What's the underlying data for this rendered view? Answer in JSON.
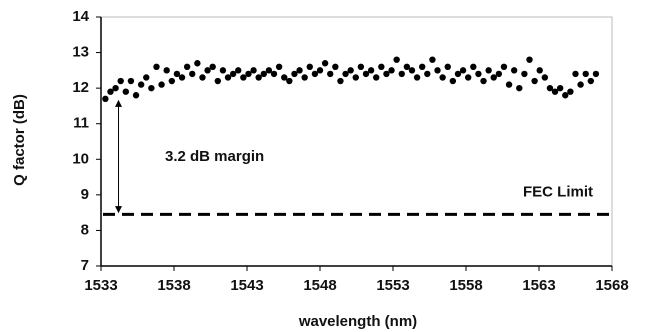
{
  "chart_data": {
    "type": "scatter",
    "x_label": "wavelength  (nm)",
    "y_label": "Q factor (dB)",
    "xlim": [
      1533,
      1568
    ],
    "xticks": [
      1533,
      1538,
      1543,
      1548,
      1553,
      1558,
      1563,
      1568
    ],
    "ylim": [
      7,
      14
    ],
    "yticks": [
      7,
      8,
      9,
      10,
      11,
      12,
      13,
      14
    ],
    "grid": false,
    "series": [
      {
        "color": "#000000",
        "x": [
          1533.3,
          1533.65,
          1534.0,
          1534.35,
          1534.7,
          1535.05,
          1535.4,
          1535.75,
          1536.1,
          1536.45,
          1536.8,
          1537.15,
          1537.5,
          1537.85,
          1538.2,
          1538.55,
          1538.9,
          1539.25,
          1539.6,
          1539.95,
          1540.3,
          1540.65,
          1541.0,
          1541.35,
          1541.7,
          1542.05,
          1542.4,
          1542.75,
          1543.1,
          1543.45,
          1543.8,
          1544.15,
          1544.5,
          1544.85,
          1545.2,
          1545.55,
          1545.9,
          1546.25,
          1546.6,
          1546.95,
          1547.3,
          1547.65,
          1548.0,
          1548.35,
          1548.7,
          1549.05,
          1549.4,
          1549.75,
          1550.1,
          1550.45,
          1550.8,
          1551.15,
          1551.5,
          1551.85,
          1552.2,
          1552.55,
          1552.9,
          1553.25,
          1553.6,
          1553.95,
          1554.3,
          1554.65,
          1555.0,
          1555.35,
          1555.7,
          1556.05,
          1556.4,
          1556.75,
          1557.1,
          1557.45,
          1557.8,
          1558.15,
          1558.5,
          1558.85,
          1559.2,
          1559.55,
          1559.9,
          1560.25,
          1560.6,
          1560.95,
          1561.3,
          1561.65,
          1562.0,
          1562.35,
          1562.7,
          1563.05,
          1563.4,
          1563.75,
          1564.1,
          1564.45,
          1564.8,
          1565.15,
          1565.5,
          1565.85,
          1566.2,
          1566.55,
          1566.9
        ],
        "values": [
          11.7,
          11.9,
          12.0,
          12.2,
          11.9,
          12.2,
          11.8,
          12.1,
          12.3,
          12.0,
          12.6,
          12.1,
          12.5,
          12.2,
          12.4,
          12.3,
          12.6,
          12.4,
          12.7,
          12.3,
          12.5,
          12.6,
          12.2,
          12.5,
          12.3,
          12.4,
          12.5,
          12.3,
          12.4,
          12.5,
          12.3,
          12.4,
          12.5,
          12.4,
          12.6,
          12.3,
          12.2,
          12.4,
          12.5,
          12.3,
          12.6,
          12.4,
          12.5,
          12.7,
          12.4,
          12.6,
          12.2,
          12.4,
          12.5,
          12.3,
          12.6,
          12.4,
          12.5,
          12.3,
          12.6,
          12.4,
          12.5,
          12.8,
          12.4,
          12.6,
          12.5,
          12.3,
          12.6,
          12.4,
          12.8,
          12.5,
          12.3,
          12.6,
          12.2,
          12.4,
          12.5,
          12.3,
          12.6,
          12.4,
          12.2,
          12.5,
          12.3,
          12.4,
          12.6,
          12.1,
          12.5,
          12.0,
          12.4,
          12.8,
          12.2,
          12.5,
          12.3,
          12.0,
          11.9,
          12.0,
          11.8,
          11.9,
          12.4,
          12.1,
          12.4,
          12.2,
          12.4
        ]
      }
    ],
    "fec_limit": {
      "label": "FEC Limit",
      "value": 8.45
    },
    "margin": {
      "label": "3.2 dB margin",
      "x": 1534.2,
      "from": 8.45,
      "to": 11.65
    }
  }
}
